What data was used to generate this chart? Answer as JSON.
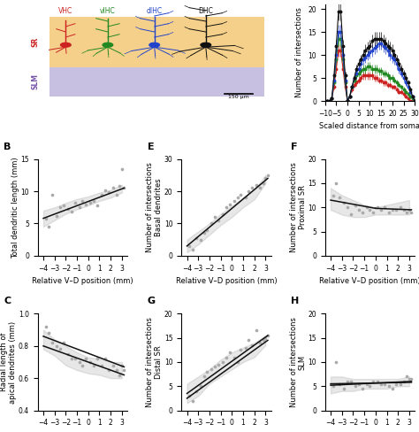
{
  "panel_A": {
    "labels": [
      "VHC",
      "vIHC",
      "dIHC",
      "DHC"
    ],
    "colors": [
      "#cc2222",
      "#228822",
      "#2244cc",
      "#111111"
    ],
    "SR_color": "#f5d08a",
    "SLM_color": "#c8c0e0",
    "SR_label_color": "#cc2222",
    "SLM_label_color": "#7755aa"
  },
  "panel_D": {
    "colors": [
      "#cc2222",
      "#228822",
      "#2244cc",
      "#111111"
    ],
    "xlim": [
      -10,
      30
    ],
    "ylim": [
      0,
      21
    ],
    "xlabel": "Scaled distance from soma",
    "ylabel": "Number of intersections",
    "xticks": [
      -10,
      -5,
      0,
      5,
      10,
      15,
      20,
      25,
      30
    ],
    "yticks": [
      0,
      5,
      10,
      15,
      20
    ],
    "basal_x": [
      -9,
      -8,
      -7,
      -6,
      -5,
      -4,
      -3,
      -2,
      -1,
      0
    ],
    "VHC_basal": [
      0,
      0,
      0.5,
      3,
      7,
      11,
      11,
      7,
      3,
      0
    ],
    "vIHC_basal": [
      0,
      0,
      0.5,
      4,
      9,
      13.5,
      13.5,
      9,
      4,
      0
    ],
    "dIHC_basal": [
      0,
      0,
      0.5,
      4.5,
      10,
      15,
      15,
      10,
      4.5,
      0
    ],
    "DHC_basal": [
      0,
      0,
      0.5,
      5.5,
      12,
      19.5,
      19.5,
      12,
      5.5,
      0
    ],
    "apical_x": [
      0,
      1,
      2,
      3,
      4,
      5,
      6,
      7,
      8,
      9,
      10,
      11,
      12,
      13,
      14,
      15,
      16,
      17,
      18,
      19,
      20,
      21,
      22,
      23,
      24,
      25,
      26,
      27,
      28,
      29,
      30
    ],
    "VHC_apical": [
      0,
      1,
      2.5,
      3.5,
      4,
      4.5,
      5,
      5.5,
      5.5,
      5.5,
      5.5,
      5.5,
      5,
      5,
      4.5,
      4.5,
      4,
      4,
      3.5,
      3.5,
      3,
      3,
      2.5,
      2,
      2,
      1.5,
      1,
      0.5,
      0,
      0,
      0
    ],
    "vIHC_apical": [
      0,
      1,
      3,
      4.5,
      5.5,
      6,
      6.5,
      7,
      7,
      7.5,
      7.5,
      7,
      7,
      7,
      6.5,
      6.5,
      6,
      6,
      5.5,
      5,
      5,
      4.5,
      4,
      3.5,
      3,
      2.5,
      2,
      1.5,
      1,
      0.5,
      0
    ],
    "dIHC_apical": [
      0,
      1,
      3,
      5,
      6,
      7,
      8,
      9,
      9.5,
      10,
      10.5,
      11,
      11.5,
      12,
      12.5,
      12.5,
      12,
      11.5,
      11,
      10,
      9.5,
      9,
      8,
      7,
      6,
      5,
      4,
      3,
      2,
      1,
      0
    ],
    "DHC_apical": [
      0,
      1,
      3,
      5,
      7,
      8,
      9,
      10,
      11,
      11.5,
      12,
      13,
      13.5,
      13.5,
      13.5,
      13.5,
      13,
      12.5,
      12,
      11.5,
      11,
      10,
      9,
      8,
      7,
      6,
      5,
      4,
      2.5,
      1,
      0
    ]
  },
  "panel_B": {
    "scatter_x": [
      -3.8,
      -3.5,
      -3.2,
      -2.8,
      -2.5,
      -2.2,
      -1.8,
      -1.5,
      -1.2,
      -0.8,
      -0.5,
      -0.2,
      0.2,
      0.5,
      0.8,
      1.2,
      1.5,
      1.8,
      2.2,
      2.5,
      2.8,
      3.0,
      3.2
    ],
    "scatter_y": [
      5.8,
      4.5,
      9.5,
      6.2,
      7.5,
      7.8,
      7.2,
      6.8,
      8.2,
      7.5,
      8.5,
      8.0,
      8.2,
      8.5,
      7.8,
      9.5,
      10.2,
      9.8,
      10.5,
      9.5,
      10.8,
      13.5,
      10.5
    ],
    "line_x": [
      -4,
      3.2
    ],
    "line_y": [
      5.8,
      10.5
    ],
    "conf_x": [
      -4,
      -3,
      -2,
      -1,
      0,
      1,
      2,
      3
    ],
    "conf_upper": [
      7.0,
      7.5,
      8.2,
      8.8,
      9.2,
      9.8,
      10.2,
      11.0
    ],
    "conf_lower": [
      4.5,
      5.5,
      6.5,
      7.2,
      7.8,
      8.5,
      9.0,
      9.8
    ],
    "xlabel": "Relative V-D position (mm)",
    "ylabel": "Total dendritic length (mm)",
    "xlim": [
      -4.5,
      3.5
    ],
    "ylim": [
      0,
      15
    ],
    "xticks": [
      -4,
      -3,
      -2,
      -1,
      0,
      1,
      2,
      3
    ],
    "yticks": [
      0,
      5,
      10,
      15
    ]
  },
  "panel_C": {
    "scatter_x": [
      -3.8,
      -3.5,
      -3.2,
      -2.8,
      -2.5,
      -2.2,
      -1.8,
      -1.5,
      -1.2,
      -0.8,
      -0.5,
      -0.2,
      0.2,
      0.5,
      0.8,
      1.2,
      1.5,
      1.8,
      2.2,
      2.5,
      2.8,
      3.0,
      3.2
    ],
    "scatter_y": [
      0.92,
      0.88,
      0.82,
      0.8,
      0.78,
      0.82,
      0.75,
      0.72,
      0.72,
      0.7,
      0.68,
      0.72,
      0.7,
      0.68,
      0.72,
      0.68,
      0.72,
      0.65,
      0.68,
      0.65,
      0.62,
      0.68,
      0.65
    ],
    "line1_x": [
      -4,
      3.2
    ],
    "line1_y": [
      0.86,
      0.67
    ],
    "line2_x": [
      -4,
      3.2
    ],
    "line2_y": [
      0.8,
      0.62
    ],
    "conf_x": [
      -4,
      -3,
      -2,
      -1,
      0,
      1,
      2,
      3
    ],
    "conf_upper": [
      0.9,
      0.84,
      0.8,
      0.76,
      0.73,
      0.72,
      0.7,
      0.7
    ],
    "conf_lower": [
      0.78,
      0.74,
      0.68,
      0.65,
      0.63,
      0.62,
      0.6,
      0.6
    ],
    "xlabel": "Relative V-D position (mm)",
    "ylabel": "Radial length of\napical dendrites (mm)",
    "xlim": [
      -4.5,
      3.5
    ],
    "ylim": [
      0.4,
      1.0
    ],
    "xticks": [
      -4,
      -3,
      -2,
      -1,
      0,
      1,
      2,
      3
    ],
    "yticks": [
      0.4,
      0.6,
      0.8,
      1.0
    ]
  },
  "panel_E": {
    "scatter_x": [
      -3.8,
      -3.5,
      -3.2,
      -2.8,
      -2.5,
      -2.2,
      -1.8,
      -1.5,
      -1.2,
      -0.8,
      -0.5,
      -0.2,
      0.2,
      0.5,
      0.8,
      1.2,
      1.5,
      1.8,
      2.2,
      2.5,
      2.8,
      3.0,
      3.2
    ],
    "scatter_y": [
      3.0,
      2.0,
      5.5,
      5.0,
      7.0,
      8.0,
      10.0,
      12.0,
      11.0,
      13.0,
      15.0,
      16.0,
      17.0,
      18.0,
      19.0,
      18.0,
      20.0,
      21.0,
      22.0,
      21.0,
      22.5,
      24.0,
      25.0
    ],
    "line_x": [
      -4,
      3.2
    ],
    "line_y": [
      3.0,
      24.0
    ],
    "conf_x": [
      -4,
      -3,
      -2,
      -1,
      0,
      1,
      2,
      3
    ],
    "conf_upper": [
      5.0,
      7.5,
      10.0,
      13.0,
      15.5,
      18.0,
      20.5,
      25.0
    ],
    "conf_lower": [
      1.0,
      3.5,
      6.5,
      9.5,
      12.0,
      15.0,
      17.5,
      22.5
    ],
    "xlabel": "Relative V-D position (mm)",
    "ylabel": "Number of intersections\nBasal dendrites",
    "xlim": [
      -4.5,
      3.5
    ],
    "ylim": [
      0,
      30
    ],
    "xticks": [
      -4,
      -3,
      -2,
      -1,
      0,
      1,
      2,
      3
    ],
    "yticks": [
      0,
      10,
      20,
      30
    ]
  },
  "panel_F": {
    "scatter_x": [
      -3.8,
      -3.5,
      -3.2,
      -2.8,
      -2.5,
      -2.2,
      -1.8,
      -1.5,
      -1.2,
      -0.8,
      -0.5,
      -0.2,
      0.2,
      0.5,
      0.8,
      1.2,
      1.5,
      1.8,
      2.2,
      2.5,
      2.8,
      3.0,
      3.2
    ],
    "scatter_y": [
      12.5,
      15.0,
      12.0,
      11.0,
      10.0,
      8.5,
      10.5,
      9.5,
      9.0,
      10.0,
      9.5,
      9.0,
      10.0,
      9.5,
      10.0,
      9.0,
      9.5,
      9.5,
      10.0,
      9.5,
      9.0,
      9.5,
      9.0
    ],
    "line1_x": [
      -4,
      0
    ],
    "line1_y": [
      11.5,
      9.8
    ],
    "line2_x": [
      0,
      3.2
    ],
    "line2_y": [
      9.8,
      9.5
    ],
    "conf_x": [
      -4,
      -3,
      -2,
      -1,
      0,
      1,
      2,
      3
    ],
    "conf_upper": [
      14.0,
      12.5,
      11.5,
      10.5,
      10.0,
      10.5,
      11.0,
      11.5
    ],
    "conf_lower": [
      9.5,
      8.5,
      8.0,
      8.0,
      8.5,
      8.5,
      8.5,
      8.5
    ],
    "xlabel": "Relative V-D position (mm)",
    "ylabel": "Number of intersections\nProximal SR",
    "xlim": [
      -4.5,
      3.5
    ],
    "ylim": [
      0,
      20
    ],
    "xticks": [
      -4,
      -3,
      -2,
      -1,
      0,
      1,
      2,
      3
    ],
    "yticks": [
      0,
      5,
      10,
      15,
      20
    ]
  },
  "panel_G": {
    "scatter_x": [
      -3.8,
      -3.5,
      -3.2,
      -2.8,
      -2.5,
      -2.2,
      -1.8,
      -1.5,
      -1.2,
      -0.8,
      -0.5,
      -0.2,
      0.2,
      0.5,
      0.8,
      1.2,
      1.5,
      1.8,
      2.2,
      2.5,
      2.8,
      3.0,
      3.2
    ],
    "scatter_y": [
      3.0,
      2.0,
      4.0,
      5.0,
      7.0,
      8.0,
      8.5,
      9.0,
      9.5,
      10.0,
      11.0,
      12.0,
      11.0,
      10.0,
      12.5,
      13.0,
      14.5,
      13.5,
      16.5,
      14.0,
      14.5,
      15.0,
      15.5
    ],
    "line1_x": [
      -4,
      3.2
    ],
    "line1_y": [
      2.5,
      14.5
    ],
    "line2_x": [
      -4,
      3.2
    ],
    "line2_y": [
      3.5,
      15.5
    ],
    "conf_x": [
      -4,
      -3,
      -2,
      -1,
      0,
      1,
      2,
      3
    ],
    "conf_upper": [
      5.5,
      7.0,
      8.5,
      10.5,
      12.0,
      13.0,
      14.0,
      15.5
    ],
    "conf_lower": [
      1.5,
      3.0,
      5.5,
      7.0,
      8.5,
      10.0,
      11.0,
      13.5
    ],
    "xlabel": "Relative V-D position (mm)",
    "ylabel": "Number of intersections\nDistal SR",
    "xlim": [
      -4.5,
      3.5
    ],
    "ylim": [
      0,
      20
    ],
    "xticks": [
      -4,
      -3,
      -2,
      -1,
      0,
      1,
      2,
      3
    ],
    "yticks": [
      0,
      5,
      10,
      15,
      20
    ]
  },
  "panel_H": {
    "scatter_x": [
      -3.8,
      -3.5,
      -3.2,
      -2.8,
      -2.5,
      -2.2,
      -1.8,
      -1.5,
      -1.2,
      -0.8,
      -0.5,
      -0.2,
      0.2,
      0.5,
      0.8,
      1.2,
      1.5,
      1.8,
      2.2,
      2.5,
      2.8,
      3.0,
      3.2
    ],
    "scatter_y": [
      5.0,
      10.0,
      5.5,
      4.5,
      6.0,
      6.0,
      5.0,
      5.5,
      4.5,
      5.5,
      5.0,
      6.0,
      6.0,
      5.5,
      5.5,
      5.0,
      4.5,
      5.5,
      5.5,
      6.0,
      7.0,
      6.5,
      6.5
    ],
    "line1_x": [
      -4,
      3.2
    ],
    "line1_y": [
      5.2,
      6.0
    ],
    "line2_x": [
      -4,
      3.2
    ],
    "line2_y": [
      5.5,
      5.8
    ],
    "conf_x": [
      -4,
      -3,
      -2,
      -1,
      0,
      1,
      2,
      3
    ],
    "conf_upper": [
      7.0,
      7.0,
      6.5,
      6.5,
      6.5,
      6.5,
      6.5,
      7.0
    ],
    "conf_lower": [
      3.5,
      4.0,
      4.0,
      4.5,
      4.5,
      4.5,
      5.0,
      5.0
    ],
    "xlabel": "Relative V-D position (mm)",
    "ylabel": "Number of intersections\nSLM",
    "xlim": [
      -4.5,
      3.5
    ],
    "ylim": [
      0,
      20
    ],
    "xticks": [
      -4,
      -3,
      -2,
      -1,
      0,
      1,
      2,
      3
    ],
    "yticks": [
      0,
      5,
      10,
      15,
      20
    ]
  },
  "scatter_color": "#aaaaaa",
  "line_color": "#111111",
  "conf_color": "#888888",
  "label_fontsize": 6,
  "tick_fontsize": 5.5,
  "title_fontsize": 8
}
